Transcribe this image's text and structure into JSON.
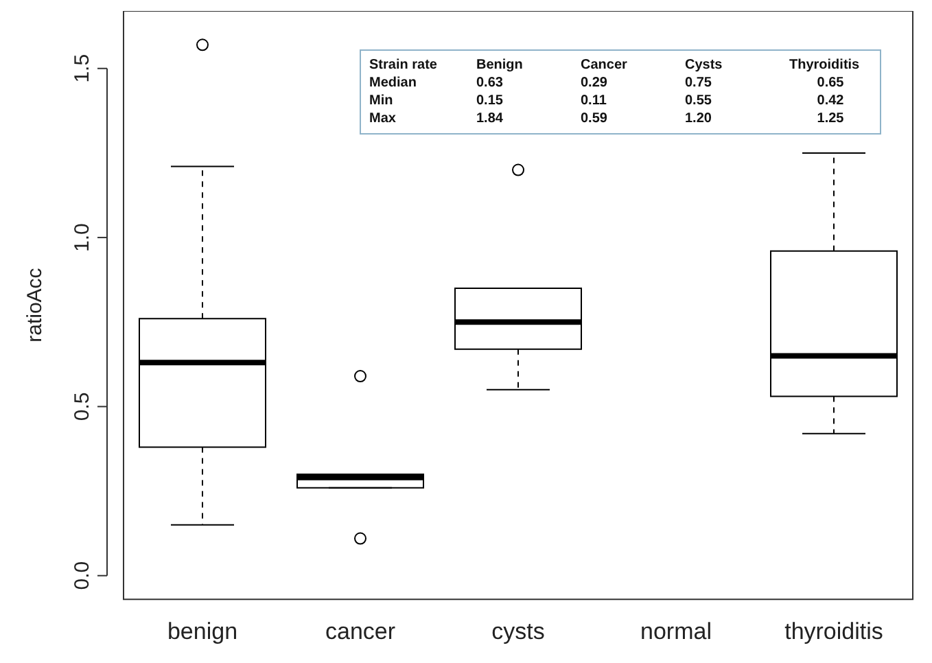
{
  "chart_data": {
    "type": "box",
    "ylabel": "ratioAcc",
    "categories": [
      "benign",
      "cancer",
      "cysts",
      "normal",
      "thyroiditis"
    ],
    "boxes": [
      {
        "low": 0.15,
        "q1": 0.38,
        "median": 0.63,
        "q3": 0.76,
        "high": 1.21,
        "outliers": [
          1.57
        ]
      },
      {
        "low": 0.26,
        "q1": 0.26,
        "median": 0.29,
        "q3": 0.3,
        "high": 0.3,
        "outliers": [
          0.59,
          0.11
        ]
      },
      {
        "low": 0.55,
        "q1": 0.67,
        "median": 0.75,
        "q3": 0.85,
        "high": 0.85,
        "outliers": [
          1.2
        ]
      },
      null,
      {
        "low": 0.42,
        "q1": 0.53,
        "median": 0.65,
        "q3": 0.96,
        "high": 1.25
      }
    ],
    "ylim": [
      -0.07,
      1.67
    ],
    "yticks": [
      {
        "value": 0,
        "label": "0.0"
      },
      {
        "value": 0.5,
        "label": "0.5"
      },
      {
        "value": 1,
        "label": "1.0"
      },
      {
        "value": 1.5,
        "label": "1.5"
      }
    ],
    "annotations": [
      "Strain rate",
      "Benign",
      "Cancer",
      "Cysts",
      "Thyroiditis",
      "Median",
      "0.63",
      "0.29",
      "0.75",
      "0.65",
      "Min",
      "0.15",
      "0.11",
      "0.55",
      "0.42",
      "Max",
      "1.84",
      "0.59",
      "1.20",
      "1.25"
    ]
  }
}
